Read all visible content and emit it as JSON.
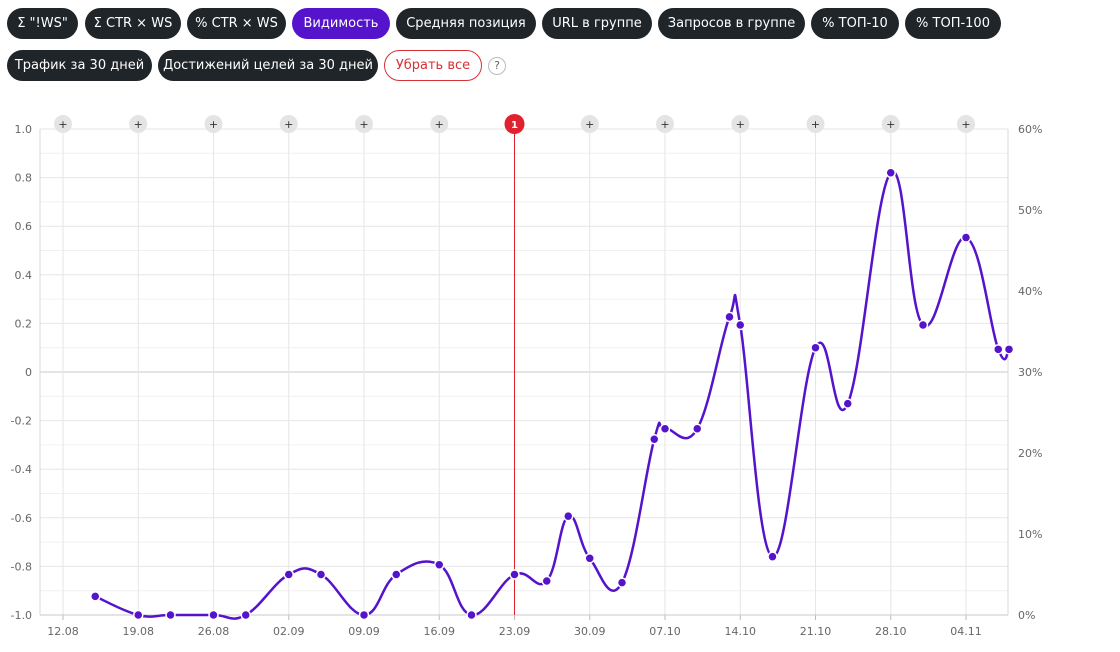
{
  "toolbar": {
    "chips": [
      {
        "label": "Σ \"!WS\"",
        "active": false
      },
      {
        "label": "Σ CTR × WS",
        "active": false
      },
      {
        "label": "% CTR × WS",
        "active": false
      },
      {
        "label": "Видимость",
        "active": true
      },
      {
        "label": "Средняя позиция",
        "active": false
      },
      {
        "label": "URL в группе",
        "active": false
      },
      {
        "label": "Запросов в группе",
        "active": false
      },
      {
        "label": "% ТОП-10",
        "active": false
      },
      {
        "label": "% ТОП-100",
        "active": false
      },
      {
        "label": "Трафик за 30 дней",
        "active": false
      },
      {
        "label": "Достижений целей за 30 дней",
        "active": false
      }
    ],
    "clear_label": "Убрать все",
    "help_label": "?"
  },
  "colors": {
    "chip_bg": "#1f2529",
    "chip_active_bg": "#5513cc",
    "clear_color": "#d53236",
    "line": "#5513cc",
    "event_line": "#e0222e",
    "grid": "#e6e6e6"
  },
  "chart_data": {
    "type": "line",
    "x_ticks": [
      "12.08",
      "19.08",
      "26.08",
      "02.09",
      "09.09",
      "16.09",
      "23.09",
      "30.09",
      "07.10",
      "14.10",
      "21.10",
      "28.10",
      "04.11"
    ],
    "y_left": {
      "ticks": [
        "1.0",
        "0.8",
        "0.6",
        "0.4",
        "0.2",
        "0",
        "-0.2",
        "-0.4",
        "-0.6",
        "-0.8",
        "-1.0"
      ],
      "range": [
        -1.0,
        1.0
      ]
    },
    "y_right": {
      "ticks": [
        "60%",
        "50%",
        "40%",
        "30%",
        "20%",
        "10%",
        "0%"
      ],
      "range": [
        0,
        60
      ]
    },
    "series": [
      {
        "color": "#5513cc",
        "axis": "right",
        "points": [
          [
            "15.08",
            2.3
          ],
          [
            "19.08",
            0
          ],
          [
            "22.08",
            0
          ],
          [
            "26.08",
            0
          ],
          [
            "29.08",
            0
          ],
          [
            "02.09",
            5
          ],
          [
            "05.09",
            5
          ],
          [
            "09.09",
            0
          ],
          [
            "12.09",
            5
          ],
          [
            "16.09",
            6.2
          ],
          [
            "19.09",
            0
          ],
          [
            "23.09",
            5
          ],
          [
            "26.09",
            4.2
          ],
          [
            "28.09",
            12.2
          ],
          [
            "30.09",
            7
          ],
          [
            "03.10",
            4
          ],
          [
            "06.10",
            21.7
          ],
          [
            "07.10",
            23
          ],
          [
            "10.10",
            23
          ],
          [
            "13.10",
            36.8
          ],
          [
            "14.10",
            35.8
          ],
          [
            "17.10",
            7.2
          ],
          [
            "21.10",
            33
          ],
          [
            "24.10",
            26.1
          ],
          [
            "28.10",
            54.6
          ],
          [
            "31.10",
            35.8
          ],
          [
            "04.11",
            46.6
          ],
          [
            "07.11",
            32.8
          ],
          [
            "08.11",
            32.8
          ]
        ]
      }
    ],
    "event_markers": [
      {
        "date": "12.08",
        "label": "+"
      },
      {
        "date": "19.08",
        "label": "+"
      },
      {
        "date": "26.08",
        "label": "+"
      },
      {
        "date": "02.09",
        "label": "+"
      },
      {
        "date": "09.09",
        "label": "+"
      },
      {
        "date": "16.09",
        "label": "+"
      },
      {
        "date": "23.09",
        "label": "1",
        "highlighted": true
      },
      {
        "date": "30.09",
        "label": "+"
      },
      {
        "date": "07.10",
        "label": "+"
      },
      {
        "date": "14.10",
        "label": "+"
      },
      {
        "date": "21.10",
        "label": "+"
      },
      {
        "date": "28.10",
        "label": "+"
      },
      {
        "date": "04.11",
        "label": "+"
      }
    ],
    "grid": true,
    "legend": "none"
  }
}
